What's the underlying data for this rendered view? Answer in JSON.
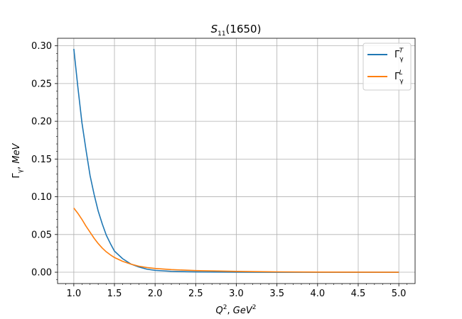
{
  "chart_data": {
    "type": "line",
    "title": {
      "main": "S",
      "sub": "11",
      "rest": "(1650)"
    },
    "xlabel": {
      "q": "Q",
      "q_sup": "2",
      "sep": ", ",
      "unit": "GeV",
      "unit_sup": "2"
    },
    "ylabel": {
      "gamma": "Γ",
      "gamma_sub": "γ",
      "sep": ", ",
      "unit": "MeV"
    },
    "xlim": [
      0.8,
      5.2
    ],
    "ylim": [
      -0.015,
      0.31
    ],
    "xticks": [
      1.0,
      1.5,
      2.0,
      2.5,
      3.0,
      3.5,
      4.0,
      4.5,
      5.0
    ],
    "xtick_labels": [
      "1.0",
      "1.5",
      "2.0",
      "2.5",
      "3.0",
      "3.5",
      "4.0",
      "4.5",
      "5.0"
    ],
    "yticks": [
      0.0,
      0.05,
      0.1,
      0.15,
      0.2,
      0.25,
      0.3
    ],
    "ytick_labels": [
      "0.00",
      "0.05",
      "0.10",
      "0.15",
      "0.20",
      "0.25",
      "0.30"
    ],
    "grid": true,
    "legend_position": "top-right",
    "x": [
      1.0,
      1.05,
      1.1,
      1.15,
      1.2,
      1.25,
      1.3,
      1.35,
      1.4,
      1.45,
      1.5,
      1.6,
      1.7,
      1.8,
      1.9,
      2.0,
      2.2,
      2.5,
      3.0,
      3.5,
      4.0,
      4.5,
      5.0
    ],
    "series": [
      {
        "name": "Γγ^T",
        "legend": {
          "base": "Γ",
          "sub": "γ",
          "sup": "T"
        },
        "color": "#1f77b4",
        "values": [
          0.296,
          0.245,
          0.198,
          0.162,
          0.128,
          0.103,
          0.081,
          0.064,
          0.049,
          0.038,
          0.028,
          0.018,
          0.011,
          0.007,
          0.004,
          0.0025,
          0.0012,
          0.0004,
          0.0001,
          0.0,
          0.0,
          0.0,
          0.0
        ]
      },
      {
        "name": "Γγ^L",
        "legend": {
          "base": "Γ",
          "sub": "γ",
          "sup": "L"
        },
        "color": "#ff7f0e",
        "values": [
          0.085,
          0.078,
          0.07,
          0.061,
          0.053,
          0.045,
          0.038,
          0.032,
          0.027,
          0.023,
          0.0195,
          0.0145,
          0.0108,
          0.008,
          0.0062,
          0.005,
          0.0035,
          0.0022,
          0.0011,
          0.0005,
          0.0002,
          0.0001,
          0.0
        ]
      }
    ]
  }
}
